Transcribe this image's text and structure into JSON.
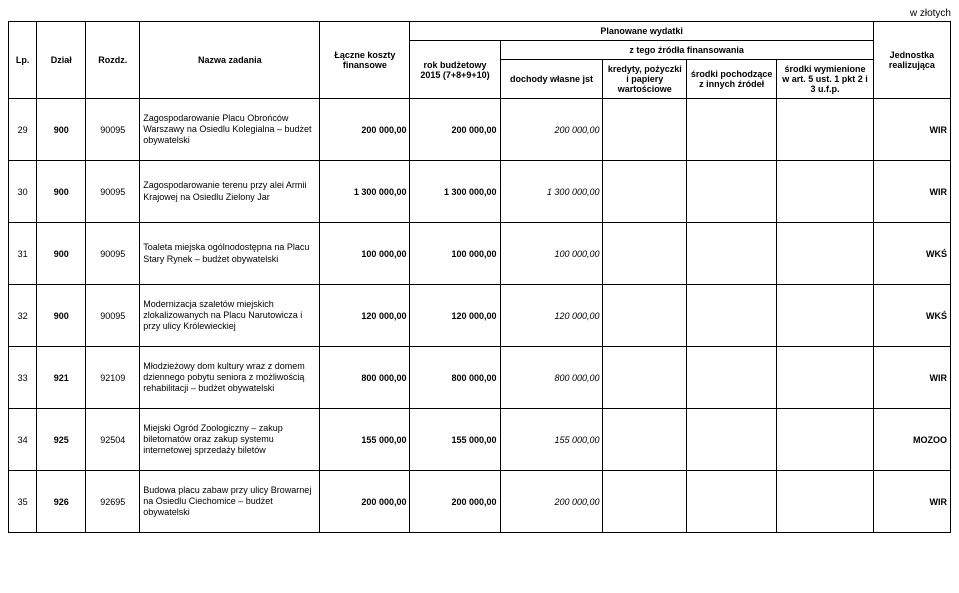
{
  "currency_note": "w złotych",
  "header": {
    "lp": "Lp.",
    "dzial": "Dział",
    "rozdz": "Rozdz.",
    "nazwa": "Nazwa zadania",
    "koszty": "Łączne koszty finansowe",
    "planowane": "Planowane wydatki",
    "rok": "rok budżetowy 2015 (7+8+9+10)",
    "ztego": "z tego źródła finansowania",
    "dochody": "dochody własne jst",
    "kredyty": "kredyty, pożyczki i papiery wartościowe",
    "srodki_pochodzace": "środki pochodzące z innych źródeł",
    "srodki_wymienione": "środki wymienione w art. 5 ust. 1 pkt 2 i 3 u.f.p.",
    "jednostka": "Jednostka realizująca"
  },
  "rows": [
    {
      "lp": "29",
      "dzial": "900",
      "rozdz": "90095",
      "nazwa": "Zagospodarowanie Placu Obrońców Warszawy na Osiedlu Kolegialna – budżet obywatelski",
      "koszty": "200 000,00",
      "rok": "200 000,00",
      "dochody": "200 000,00",
      "kredyty": "",
      "srodki1": "",
      "srodki2": "",
      "jednostka": "WIR"
    },
    {
      "lp": "30",
      "dzial": "900",
      "rozdz": "90095",
      "nazwa": "Zagospodarowanie terenu przy alei Armii Krajowej na Osiedlu Zielony Jar",
      "koszty": "1 300 000,00",
      "rok": "1 300 000,00",
      "dochody": "1 300 000,00",
      "kredyty": "",
      "srodki1": "",
      "srodki2": "",
      "jednostka": "WIR"
    },
    {
      "lp": "31",
      "dzial": "900",
      "rozdz": "90095",
      "nazwa": "Toaleta miejska ogólnodostępna na Placu Stary Rynek – budżet obywatelski",
      "koszty": "100 000,00",
      "rok": "100 000,00",
      "dochody": "100 000,00",
      "kredyty": "",
      "srodki1": "",
      "srodki2": "",
      "jednostka": "WKŚ"
    },
    {
      "lp": "32",
      "dzial": "900",
      "rozdz": "90095",
      "nazwa": "Modernizacja szaletów miejskich zlokalizowanych na Placu Narutowicza i przy ulicy Królewieckiej",
      "koszty": "120 000,00",
      "rok": "120 000,00",
      "dochody": "120 000,00",
      "kredyty": "",
      "srodki1": "",
      "srodki2": "",
      "jednostka": "WKŚ"
    },
    {
      "lp": "33",
      "dzial": "921",
      "rozdz": "92109",
      "nazwa": "Młodzieżowy dom kultury wraz z domem dziennego pobytu seniora z możliwością rehabilitacji – budżet obywatelski",
      "koszty": "800 000,00",
      "rok": "800 000,00",
      "dochody": "800 000,00",
      "kredyty": "",
      "srodki1": "",
      "srodki2": "",
      "jednostka": "WIR"
    },
    {
      "lp": "34",
      "dzial": "925",
      "rozdz": "92504",
      "nazwa": "Miejski Ogród Zoologiczny – zakup biletomatów oraz zakup systemu internetowej sprzedaży biletów",
      "koszty": "155 000,00",
      "rok": "155 000,00",
      "dochody": "155 000,00",
      "kredyty": "",
      "srodki1": "",
      "srodki2": "",
      "jednostka": "MOZOO"
    },
    {
      "lp": "35",
      "dzial": "926",
      "rozdz": "92695",
      "nazwa": "Budowa placu zabaw przy ulicy Browarnej na Osiedlu Ciechomice – budżet obywatelski",
      "koszty": "200 000,00",
      "rok": "200 000,00",
      "dochody": "200 000,00",
      "kredyty": "",
      "srodki1": "",
      "srodki2": "",
      "jednostka": "WIR"
    }
  ]
}
